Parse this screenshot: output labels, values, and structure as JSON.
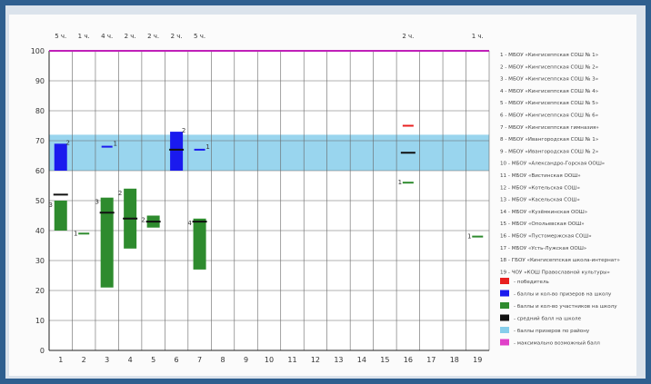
{
  "chart_data": {
    "type": "box",
    "ylim": [
      0,
      100
    ],
    "y_ticks": [
      0,
      10,
      20,
      30,
      40,
      50,
      60,
      70,
      80,
      90,
      100
    ],
    "x_ticks": [
      "1",
      "2",
      "3",
      "4",
      "5",
      "6",
      "7",
      "8",
      "9",
      "10",
      "11",
      "12",
      "13",
      "14",
      "15",
      "16",
      "17",
      "18",
      "19"
    ],
    "count_labels": [
      {
        "x": 1,
        "text": "5 ч."
      },
      {
        "x": 2,
        "text": "1 ч."
      },
      {
        "x": 3,
        "text": "4 ч."
      },
      {
        "x": 4,
        "text": "2 ч."
      },
      {
        "x": 5,
        "text": "2 ч."
      },
      {
        "x": 6,
        "text": "2 ч."
      },
      {
        "x": 7,
        "text": "5 ч."
      },
      {
        "x": 16,
        "text": "2 ч."
      },
      {
        "x": 19,
        "text": "1 ч."
      }
    ],
    "district_band": [
      60,
      72
    ],
    "max_score": 100,
    "ranges": [
      {
        "x": 1,
        "low": 60,
        "high": 69,
        "kind": "prize",
        "label": "2"
      },
      {
        "x": 1,
        "low": 40,
        "high": 50,
        "kind": "participant",
        "label": "3"
      },
      {
        "x": 3,
        "low": 21,
        "high": 51,
        "kind": "participant",
        "label": "3"
      },
      {
        "x": 4,
        "low": 34,
        "high": 54,
        "kind": "participant",
        "label": "2"
      },
      {
        "x": 5,
        "low": 41,
        "high": 45,
        "kind": "participant",
        "label": "2"
      },
      {
        "x": 6,
        "low": 60,
        "high": 73,
        "kind": "prize",
        "label": "2"
      },
      {
        "x": 7,
        "low": 27,
        "high": 44,
        "kind": "participant",
        "label": "4"
      }
    ],
    "single_marks": [
      {
        "x": 2,
        "y": 39,
        "kind": "participant",
        "label": "1"
      },
      {
        "x": 3,
        "y": 68,
        "kind": "prize",
        "label": "1"
      },
      {
        "x": 7,
        "y": 67,
        "kind": "prize",
        "label": "1"
      },
      {
        "x": 16,
        "y": 56,
        "kind": "participant",
        "label": "1"
      },
      {
        "x": 19,
        "y": 38,
        "kind": "participant",
        "label": "1"
      }
    ],
    "averages": [
      {
        "x": 1,
        "y": 52
      },
      {
        "x": 3,
        "y": 46
      },
      {
        "x": 4,
        "y": 44
      },
      {
        "x": 5,
        "y": 43
      },
      {
        "x": 6,
        "y": 67
      },
      {
        "x": 7,
        "y": 43
      },
      {
        "x": 16,
        "y": 66
      }
    ],
    "winners": [
      {
        "x": 16,
        "y": 75
      }
    ],
    "schools": [
      "1 - МБОУ «Кингисеппская СОШ № 1»",
      "2 - МБОУ «Кингисеппская СОШ № 2»",
      "3 - МБОУ «Кингисеппская СОШ № 3»",
      "4 - МБОУ «Кингисеппская СОШ № 4»",
      "5 - МБОУ «Кингисеппская СОШ № 5»",
      "6 - МБОУ «Кингисеппская СОШ № 6»",
      "7 - МБОУ «Кингисеппская гимназия»",
      "8 - МБОУ «Ивангородская СОШ № 1»",
      "9 - МБОУ «Ивангородская СОШ № 2»",
      "10 - МБОУ «Александро-Горская ООШ»",
      "11 - МБОУ «Вистинская ООШ»",
      "12 - МБОУ «Котельская СОШ»",
      "13 - МБОУ «Касельская СОШ»",
      "14 - МБОУ «Кузёмкинская ООШ»",
      "15 - МБОУ «Опольевская ООШ»",
      "16 - МБОУ «Пустомержская СОШ»",
      "17 - МБОУ «Усть-Лужская ООШ»",
      "18 - ГБОУ «Кингисеппская школа-интернат»",
      "19 - ЧОУ «КОШ Православной культуры»"
    ],
    "legend": [
      {
        "color": "#e82020",
        "text": "- победитель"
      },
      {
        "color": "#1a1aee",
        "text": "- баллы и кол-во призеров на школу"
      },
      {
        "color": "#2e8b2e",
        "text": "- баллы и кол-во участников на школу"
      },
      {
        "color": "#111111",
        "text": "- средний балл на школе"
      },
      {
        "color": "#87ceeb",
        "text": "- баллы призеров по району"
      },
      {
        "color": "#e040c8",
        "text": "- максимально возможный балл"
      }
    ],
    "colors": {
      "winner": "#e82020",
      "prize": "#1a1aee",
      "participant": "#2e8b2e",
      "average": "#111111",
      "band": "#87ceeb",
      "max": "#c020b8"
    }
  }
}
